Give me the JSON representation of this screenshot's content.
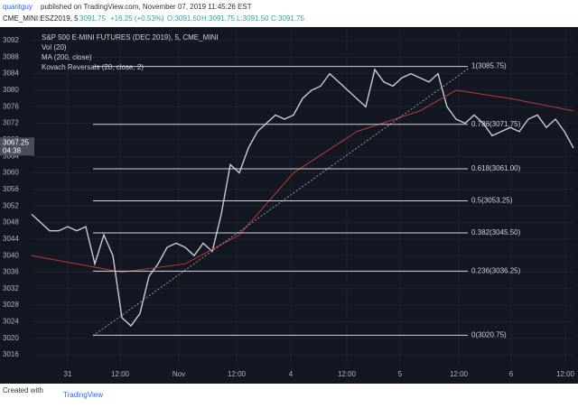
{
  "header": {
    "author": "quantguy",
    "published": "published on TradingView.com, November 07, 2019 11:45:26 EST"
  },
  "quote": {
    "symbol": "CME_MINI:ESZ2019, 5",
    "last": "3091.75",
    "change": "+16.25 (+0.53%)",
    "open": "O:3091.50",
    "high": "H:3091.75",
    "low": "L:3091.50",
    "close": "C:3091.75"
  },
  "chart_data": {
    "type": "line",
    "title": "S&P 500 E-MINI FUTURES (DEC 2019), 5, CME_MINI",
    "indicators": [
      "Vol (20)",
      "MA (200, close)",
      "Kovach Reversals (20, close, 2)"
    ],
    "xlim": [
      0,
      60
    ],
    "xticks": [
      {
        "value": 4,
        "label": "31"
      },
      {
        "value": 9.8,
        "label": "12:00"
      },
      {
        "value": 16.3,
        "label": "Nov"
      },
      {
        "value": 22.7,
        "label": "12:00"
      },
      {
        "value": 28.7,
        "label": "4"
      },
      {
        "value": 34.9,
        "label": "12:00"
      },
      {
        "value": 40.8,
        "label": "5"
      },
      {
        "value": 47.3,
        "label": "12:00"
      },
      {
        "value": 53.1,
        "label": "6"
      },
      {
        "value": 59.1,
        "label": "12:00"
      }
    ],
    "ylim": [
      3013.4,
      3094.4
    ],
    "yticks": [
      3016,
      3020,
      3024,
      3028,
      3032,
      3036,
      3040,
      3044,
      3048,
      3052,
      3056,
      3060,
      3064,
      3068,
      3072,
      3076,
      3080,
      3084,
      3088,
      3092
    ],
    "series": [
      {
        "name": "Price",
        "color": "#c8ccd4",
        "x": [
          0,
          1,
          2,
          3,
          4,
          5,
          6,
          7,
          8,
          9,
          10,
          11,
          12,
          13,
          14,
          15,
          16,
          17,
          18,
          19,
          20,
          21,
          22,
          23,
          24,
          25,
          26,
          27,
          28,
          29,
          30,
          31,
          32,
          33,
          34,
          35,
          36,
          37,
          38,
          39,
          40,
          41,
          42,
          43,
          44,
          45,
          46,
          47,
          48,
          49,
          50,
          51,
          52,
          53,
          54,
          55,
          56,
          57,
          58,
          59,
          60
        ],
        "values": [
          3050,
          3048,
          3046,
          3046,
          3047,
          3046,
          3047,
          3038,
          3045,
          3040,
          3025,
          3023,
          3026,
          3035,
          3038,
          3042,
          3043,
          3042,
          3040,
          3043,
          3041,
          3050,
          3062,
          3060,
          3066,
          3070,
          3072,
          3074,
          3073,
          3074,
          3078,
          3080,
          3081,
          3084,
          3082,
          3080,
          3078,
          3076,
          3085,
          3082,
          3081,
          3083,
          3084,
          3083,
          3082,
          3084,
          3076,
          3073,
          3072,
          3074,
          3072,
          3069,
          3070,
          3071,
          3070,
          3073,
          3074,
          3071,
          3073,
          3070,
          3066
        ]
      },
      {
        "name": "MA (200, close)",
        "color": "#b83a3a",
        "x": [
          0,
          5,
          10,
          17,
          23,
          29,
          36,
          43,
          47,
          53,
          60
        ],
        "values": [
          3040,
          3038,
          3036,
          3038,
          3045,
          3060,
          3070,
          3075,
          3080,
          3078,
          3075
        ]
      }
    ],
    "fib_levels": [
      {
        "value": 3085.75,
        "label": "1(3085.75)"
      },
      {
        "value": 3071.75,
        "label": "0.786(3071.75)"
      },
      {
        "value": 3061.0,
        "label": "0.618(3061.00)"
      },
      {
        "value": 3053.25,
        "label": "0.5(3053.25)"
      },
      {
        "value": 3045.5,
        "label": "0.382(3045.50)"
      },
      {
        "value": 3036.25,
        "label": "0.236(3036.25)"
      },
      {
        "value": 3020.75,
        "label": "0(3020.75)"
      }
    ],
    "last_price": {
      "value": 3067.25,
      "label": "3067.25",
      "countdown": "04:38"
    }
  },
  "footer": {
    "created": "Created with",
    "brand": "TradingView"
  }
}
